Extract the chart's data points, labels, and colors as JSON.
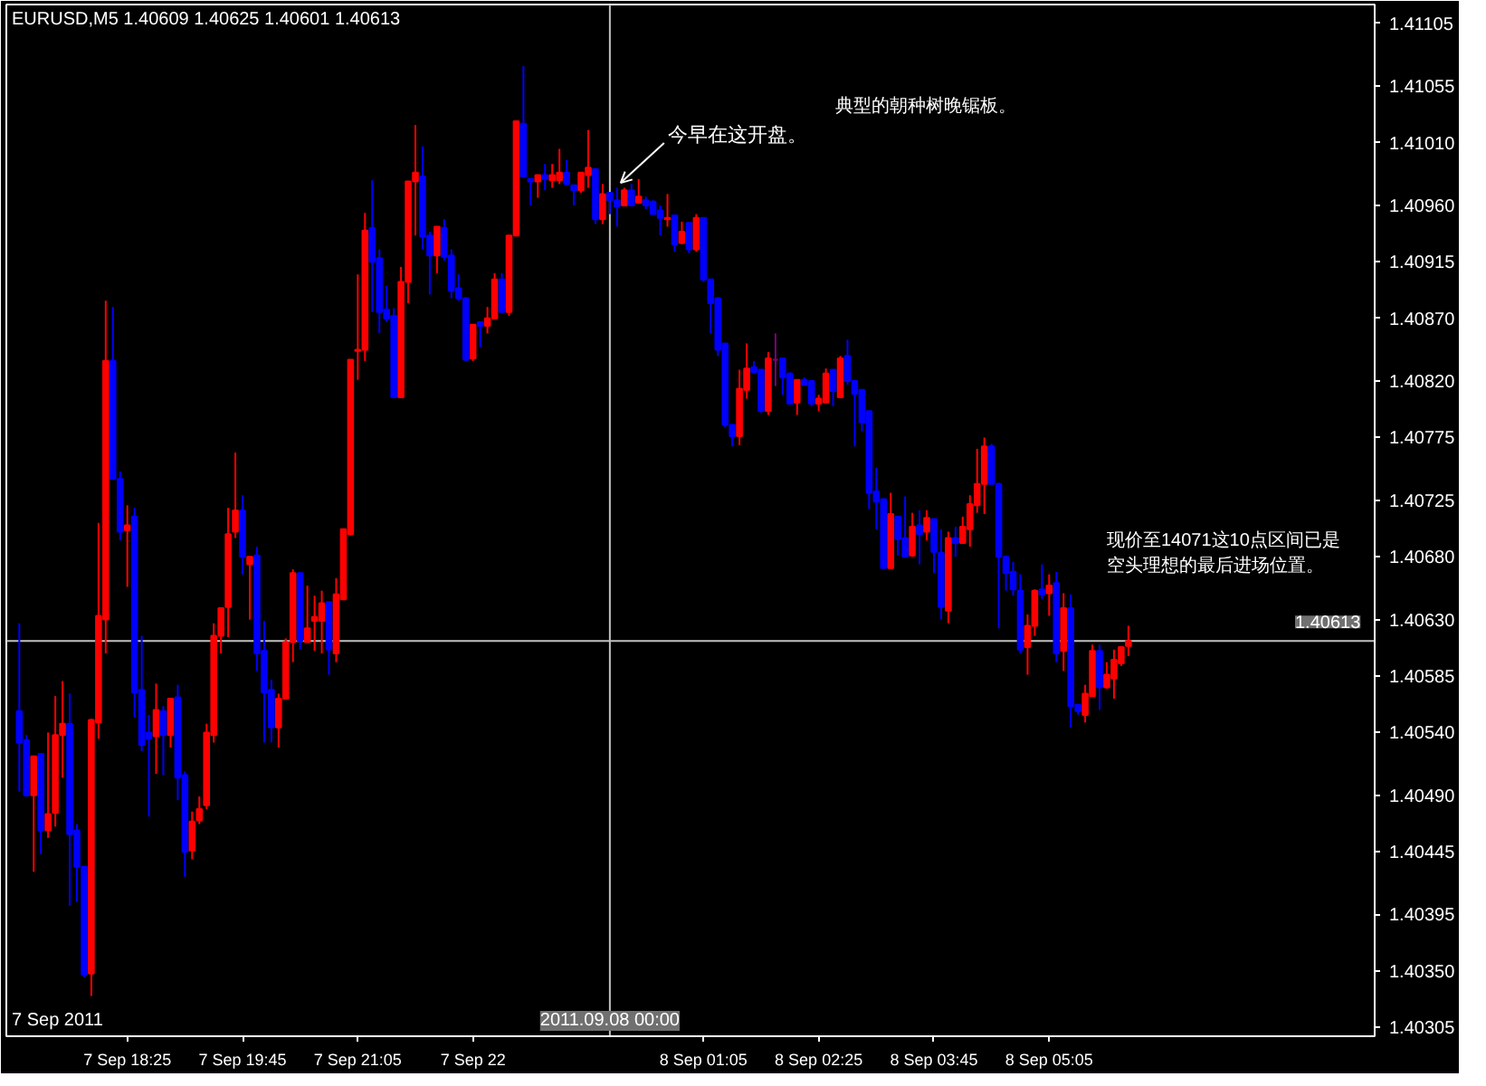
{
  "chart_data": {
    "type": "candlestick",
    "title": "EURUSD,M5  1.40609 1.40625 1.40601 1.40613",
    "x": [
      "2011-09-07T17:10",
      "2011-09-07T17:15",
      "2011-09-07T17:20",
      "2011-09-07T17:25",
      "2011-09-07T17:30",
      "2011-09-07T17:35",
      "2011-09-07T17:40",
      "2011-09-07T17:45",
      "2011-09-07T17:50",
      "2011-09-07T17:55",
      "2011-09-07T18:00",
      "2011-09-07T18:05",
      "2011-09-07T18:10",
      "2011-09-07T18:15",
      "2011-09-07T18:20",
      "2011-09-07T18:25",
      "2011-09-07T18:30",
      "2011-09-07T18:35",
      "2011-09-07T18:40",
      "2011-09-07T18:45",
      "2011-09-07T18:50",
      "2011-09-07T18:55",
      "2011-09-07T19:00",
      "2011-09-07T19:05",
      "2011-09-07T19:10",
      "2011-09-07T19:15",
      "2011-09-07T19:20",
      "2011-09-07T19:25",
      "2011-09-07T19:30",
      "2011-09-07T19:35",
      "2011-09-07T19:40",
      "2011-09-07T19:45",
      "2011-09-07T19:50",
      "2011-09-07T19:55",
      "2011-09-07T20:00",
      "2011-09-07T20:05",
      "2011-09-07T20:10",
      "2011-09-07T20:15",
      "2011-09-07T20:20",
      "2011-09-07T20:25",
      "2011-09-07T20:30",
      "2011-09-07T20:35",
      "2011-09-07T20:40",
      "2011-09-07T20:45",
      "2011-09-07T20:50",
      "2011-09-07T20:55",
      "2011-09-07T21:00",
      "2011-09-07T21:05",
      "2011-09-07T21:10",
      "2011-09-07T21:15",
      "2011-09-07T21:20",
      "2011-09-07T21:25",
      "2011-09-07T21:30",
      "2011-09-07T21:35",
      "2011-09-07T21:40",
      "2011-09-07T21:45",
      "2011-09-07T21:50",
      "2011-09-07T21:55",
      "2011-09-07T22:00",
      "2011-09-07T22:05",
      "2011-09-07T22:10",
      "2011-09-07T22:15",
      "2011-09-07T22:20",
      "2011-09-07T22:25",
      "2011-09-07T22:30",
      "2011-09-07T22:35",
      "2011-09-07T22:40",
      "2011-09-07T22:45",
      "2011-09-07T22:50",
      "2011-09-07T22:55",
      "2011-09-07T23:00",
      "2011-09-07T23:05",
      "2011-09-07T23:10",
      "2011-09-07T23:15",
      "2011-09-07T23:20",
      "2011-09-07T23:25",
      "2011-09-07T23:30",
      "2011-09-07T23:35",
      "2011-09-07T23:40",
      "2011-09-07T23:45",
      "2011-09-07T23:50",
      "2011-09-07T23:55",
      "2011-09-08T00:00",
      "2011-09-08T00:05",
      "2011-09-08T00:10",
      "2011-09-08T00:15",
      "2011-09-08T00:20",
      "2011-09-08T00:25",
      "2011-09-08T00:30",
      "2011-09-08T00:35",
      "2011-09-08T00:40",
      "2011-09-08T00:45",
      "2011-09-08T00:50",
      "2011-09-08T00:55",
      "2011-09-08T01:00",
      "2011-09-08T01:05",
      "2011-09-08T01:10",
      "2011-09-08T01:15",
      "2011-09-08T01:20",
      "2011-09-08T01:25",
      "2011-09-08T01:30",
      "2011-09-08T01:35",
      "2011-09-08T01:40",
      "2011-09-08T01:45",
      "2011-09-08T01:50",
      "2011-09-08T01:55",
      "2011-09-08T02:00",
      "2011-09-08T02:05",
      "2011-09-08T02:10",
      "2011-09-08T02:15",
      "2011-09-08T02:20",
      "2011-09-08T02:25",
      "2011-09-08T02:30",
      "2011-09-08T02:35",
      "2011-09-08T02:40",
      "2011-09-08T02:45",
      "2011-09-08T02:50",
      "2011-09-08T02:55",
      "2011-09-08T03:00",
      "2011-09-08T03:05",
      "2011-09-08T03:10",
      "2011-09-08T03:15",
      "2011-09-08T03:20",
      "2011-09-08T03:25",
      "2011-09-08T03:30",
      "2011-09-08T03:35",
      "2011-09-08T03:40",
      "2011-09-08T03:45",
      "2011-09-08T03:50",
      "2011-09-08T03:55",
      "2011-09-08T04:00",
      "2011-09-08T04:05",
      "2011-09-08T04:10",
      "2011-09-08T04:15",
      "2011-09-08T04:20",
      "2011-09-08T04:25",
      "2011-09-08T04:30",
      "2011-09-08T04:35",
      "2011-09-08T04:40",
      "2011-09-08T04:45",
      "2011-09-08T04:50",
      "2011-09-08T04:55",
      "2011-09-08T05:00",
      "2011-09-08T05:05",
      "2011-09-08T05:10",
      "2011-09-08T05:15",
      "2011-09-08T05:20",
      "2011-09-08T05:25",
      "2011-09-08T05:30",
      "2011-09-08T05:35",
      "2011-09-08T05:40",
      "2011-09-08T05:45",
      "2011-09-08T05:50",
      "2011-09-08T05:55",
      "2011-09-08T06:00"
    ],
    "ohlc": [
      [
        1.40557,
        1.40627,
        1.40493,
        1.40532
      ],
      [
        1.40534,
        1.40538,
        1.40489,
        1.4049
      ],
      [
        1.4049,
        1.40521,
        1.40429,
        1.40521
      ],
      [
        1.40523,
        1.40523,
        1.40443,
        1.40462
      ],
      [
        1.40462,
        1.4054,
        1.40456,
        1.40475
      ],
      [
        1.40476,
        1.40569,
        1.40465,
        1.40538
      ],
      [
        1.40538,
        1.40581,
        1.40504,
        1.40547
      ],
      [
        1.40547,
        1.40571,
        1.40402,
        1.40459
      ],
      [
        1.40462,
        1.40467,
        1.40405,
        1.40433
      ],
      [
        1.40433,
        1.40433,
        1.40345,
        1.40347
      ],
      [
        1.40348,
        1.40551,
        1.4033,
        1.4055
      ],
      [
        1.40548,
        1.40707,
        1.40535,
        1.40633
      ],
      [
        1.4063,
        1.40884,
        1.40603,
        1.40836
      ],
      [
        1.40836,
        1.40879,
        1.40742,
        1.40742
      ],
      [
        1.40742,
        1.40748,
        1.40693,
        1.407
      ],
      [
        1.40701,
        1.40721,
        1.40656,
        1.40705
      ],
      [
        1.40712,
        1.40719,
        1.40552,
        1.40572
      ],
      [
        1.40574,
        1.40617,
        1.40525,
        1.4053
      ],
      [
        1.4054,
        1.40554,
        1.40473,
        1.40535
      ],
      [
        1.40537,
        1.40579,
        1.40507,
        1.40558
      ],
      [
        1.40557,
        1.40561,
        1.40506,
        1.40538
      ],
      [
        1.40538,
        1.40567,
        1.40528,
        1.40567
      ],
      [
        1.40568,
        1.40578,
        1.40486,
        1.40504
      ],
      [
        1.40506,
        1.40509,
        1.40425,
        1.40445
      ],
      [
        1.40446,
        1.40477,
        1.40439,
        1.40469
      ],
      [
        1.4047,
        1.40489,
        1.40467,
        1.40479
      ],
      [
        1.40482,
        1.40547,
        1.40479,
        1.4054
      ],
      [
        1.40538,
        1.40627,
        1.40532,
        1.40617
      ],
      [
        1.40617,
        1.40639,
        1.40603,
        1.40639
      ],
      [
        1.4064,
        1.40719,
        1.40616,
        1.40698
      ],
      [
        1.407,
        1.40763,
        1.40695,
        1.40717
      ],
      [
        1.40717,
        1.40729,
        1.40666,
        1.4068
      ],
      [
        1.40674,
        1.4068,
        1.4063,
        1.4068
      ],
      [
        1.40681,
        1.40688,
        1.40589,
        1.40603
      ],
      [
        1.40605,
        1.40629,
        1.40532,
        1.40572
      ],
      [
        1.40574,
        1.40582,
        1.40532,
        1.40544
      ],
      [
        1.40544,
        1.40571,
        1.40528,
        1.40567
      ],
      [
        1.40567,
        1.40615,
        1.40567,
        1.40612
      ],
      [
        1.40612,
        1.4067,
        1.40596,
        1.40667
      ],
      [
        1.40667,
        1.40667,
        1.40606,
        1.40613
      ],
      [
        1.40612,
        1.40657,
        1.40612,
        1.40623
      ],
      [
        1.40629,
        1.40649,
        1.40605,
        1.40632
      ],
      [
        1.40629,
        1.40653,
        1.40603,
        1.40643
      ],
      [
        1.40644,
        1.40644,
        1.40586,
        1.40606
      ],
      [
        1.40603,
        1.40663,
        1.40596,
        1.4065
      ],
      [
        1.40646,
        1.40702,
        1.40646,
        1.40702
      ],
      [
        1.40698,
        1.40837,
        1.40697,
        1.40837
      ],
      [
        1.40844,
        1.40905,
        1.40821,
        1.40845
      ],
      [
        1.40845,
        1.40954,
        1.40836,
        1.4094
      ],
      [
        1.40942,
        1.4098,
        1.40875,
        1.40915
      ],
      [
        1.40918,
        1.40925,
        1.40858,
        1.40875
      ],
      [
        1.40877,
        1.40896,
        1.40867,
        1.4087
      ],
      [
        1.40872,
        1.40878,
        1.40807,
        1.40807
      ],
      [
        1.40807,
        1.40911,
        1.40807,
        1.40899
      ],
      [
        1.40899,
        1.40979,
        1.40882,
        1.40979
      ],
      [
        1.40979,
        1.41024,
        1.40936,
        1.40986
      ],
      [
        1.40983,
        1.41007,
        1.40925,
        1.40935
      ],
      [
        1.40936,
        1.40939,
        1.40889,
        1.4092
      ],
      [
        1.4092,
        1.40943,
        1.40906,
        1.40943
      ],
      [
        1.40942,
        1.40949,
        1.40916,
        1.40919
      ],
      [
        1.4092,
        1.40925,
        1.40886,
        1.40892
      ],
      [
        1.40894,
        1.40905,
        1.40884,
        1.40886
      ],
      [
        1.40886,
        1.40886,
        1.40836,
        1.40837
      ],
      [
        1.40838,
        1.40865,
        1.40836,
        1.40865
      ],
      [
        1.40867,
        1.40867,
        1.40847,
        1.40864
      ],
      [
        1.40864,
        1.40879,
        1.40858,
        1.4087
      ],
      [
        1.4087,
        1.40906,
        1.4087,
        1.40901
      ],
      [
        1.40901,
        1.40906,
        1.40875,
        1.40875
      ],
      [
        1.40875,
        1.40936,
        1.40872,
        1.40936
      ],
      [
        1.40936,
        1.41027,
        1.40936,
        1.41027
      ],
      [
        1.41025,
        1.41071,
        1.40983,
        1.40983
      ],
      [
        1.40981,
        1.40981,
        1.4096,
        1.40979
      ],
      [
        1.40979,
        1.40984,
        1.40966,
        1.40984
      ],
      [
        1.40984,
        1.40993,
        1.40972,
        1.40981
      ],
      [
        1.4098,
        1.40993,
        1.40974,
        1.40984
      ],
      [
        1.4098,
        1.41005,
        1.40977,
        1.40986
      ],
      [
        1.40986,
        1.40996,
        1.40976,
        1.40977
      ],
      [
        1.40976,
        1.40976,
        1.4096,
        1.40972
      ],
      [
        1.40972,
        1.40986,
        1.4097,
        1.40986
      ],
      [
        1.40984,
        1.4102,
        1.40974,
        1.4099
      ],
      [
        1.40989,
        1.40989,
        1.40945,
        1.40949
      ],
      [
        1.40949,
        1.40977,
        1.40945,
        1.40969
      ],
      [
        1.4097,
        1.4097,
        1.40953,
        1.40964
      ],
      [
        1.40964,
        1.40974,
        1.40943,
        1.40959
      ],
      [
        1.4096,
        1.40974,
        1.4096,
        1.40972
      ],
      [
        1.40972,
        1.40977,
        1.4096,
        1.4096
      ],
      [
        1.40962,
        1.40981,
        1.40962,
        1.40967
      ],
      [
        1.40964,
        1.40967,
        1.40957,
        1.4096
      ],
      [
        1.40963,
        1.40964,
        1.40953,
        1.40953
      ],
      [
        1.40956,
        1.4096,
        1.40936,
        1.4095
      ],
      [
        1.40949,
        1.40969,
        1.40943,
        1.4095
      ],
      [
        1.40952,
        1.40952,
        1.40923,
        1.40929
      ],
      [
        1.4093,
        1.40947,
        1.40929,
        1.40939
      ],
      [
        1.40946,
        1.40946,
        1.40922,
        1.40925
      ],
      [
        1.40925,
        1.40953,
        1.40923,
        1.4095
      ],
      [
        1.4095,
        1.4095,
        1.40899,
        1.40901
      ],
      [
        1.40901,
        1.40901,
        1.40858,
        1.40882
      ],
      [
        1.40886,
        1.40886,
        1.4084,
        1.40845
      ],
      [
        1.4085,
        1.4085,
        1.40783,
        1.40785
      ],
      [
        1.40785,
        1.40785,
        1.40768,
        1.40776
      ],
      [
        1.40776,
        1.40829,
        1.40769,
        1.40814
      ],
      [
        1.40813,
        1.4085,
        1.40806,
        1.4083
      ],
      [
        1.40831,
        1.40836,
        1.40827,
        1.40827
      ],
      [
        1.40829,
        1.40829,
        1.40795,
        1.40796
      ],
      [
        1.40796,
        1.40843,
        1.40793,
        1.40838
      ],
      [
        1.40837,
        1.40858,
        1.40816,
        1.40837
      ],
      [
        1.40838,
        1.40838,
        1.40809,
        1.40823
      ],
      [
        1.40826,
        1.40827,
        1.40802,
        1.40802
      ],
      [
        1.40803,
        1.40821,
        1.40793,
        1.40821
      ],
      [
        1.40821,
        1.40823,
        1.40817,
        1.40817
      ],
      [
        1.4082,
        1.4082,
        1.408,
        1.40802
      ],
      [
        1.40802,
        1.40809,
        1.40796,
        1.40806
      ],
      [
        1.40803,
        1.4083,
        1.40803,
        1.40826
      ],
      [
        1.40829,
        1.40829,
        1.408,
        1.40812
      ],
      [
        1.40807,
        1.4084,
        1.40807,
        1.40838
      ],
      [
        1.4084,
        1.40853,
        1.40817,
        1.4082
      ],
      [
        1.4082,
        1.4082,
        1.40768,
        1.4081
      ],
      [
        1.40813,
        1.40813,
        1.4078,
        1.40787
      ],
      [
        1.40796,
        1.40796,
        1.40718,
        1.40731
      ],
      [
        1.40732,
        1.40751,
        1.40702,
        1.40724
      ],
      [
        1.40726,
        1.40726,
        1.40671,
        1.40671
      ],
      [
        1.40671,
        1.40731,
        1.40671,
        1.40714
      ],
      [
        1.40712,
        1.40712,
        1.40681,
        1.40694
      ],
      [
        1.40695,
        1.40728,
        1.4068,
        1.4068
      ],
      [
        1.40681,
        1.40715,
        1.4068,
        1.40704
      ],
      [
        1.40705,
        1.40717,
        1.40674,
        1.40698
      ],
      [
        1.407,
        1.40717,
        1.40693,
        1.40711
      ],
      [
        1.4071,
        1.4071,
        1.40667,
        1.40684
      ],
      [
        1.40683,
        1.40702,
        1.4063,
        1.4064
      ],
      [
        1.40637,
        1.407,
        1.40627,
        1.40695
      ],
      [
        1.40695,
        1.40704,
        1.4068,
        1.40691
      ],
      [
        1.40691,
        1.40712,
        1.40691,
        1.40704
      ],
      [
        1.40702,
        1.40729,
        1.40688,
        1.40722
      ],
      [
        1.40721,
        1.40766,
        1.40715,
        1.40738
      ],
      [
        1.40738,
        1.40775,
        1.40714,
        1.40768
      ],
      [
        1.40768,
        1.4077,
        1.40738,
        1.40738
      ],
      [
        1.40738,
        1.40739,
        1.40623,
        1.4068
      ],
      [
        1.4068,
        1.40681,
        1.40653,
        1.40667
      ],
      [
        1.40668,
        1.40676,
        1.40649,
        1.40654
      ],
      [
        1.40653,
        1.40666,
        1.40603,
        1.40606
      ],
      [
        1.40608,
        1.40634,
        1.40586,
        1.40625
      ],
      [
        1.40625,
        1.40654,
        1.40617,
        1.40653
      ],
      [
        1.40654,
        1.40674,
        1.40646,
        1.4065
      ],
      [
        1.40651,
        1.40666,
        1.40633,
        1.40657
      ],
      [
        1.40659,
        1.40668,
        1.40596,
        1.40603
      ],
      [
        1.40605,
        1.40651,
        1.40589,
        1.40639
      ],
      [
        1.40639,
        1.4065,
        1.40544,
        1.40561
      ],
      [
        1.40562,
        1.40562,
        1.40554,
        1.40557
      ],
      [
        1.40554,
        1.40578,
        1.40548,
        1.40571
      ],
      [
        1.40569,
        1.4061,
        1.40569,
        1.40605
      ],
      [
        1.40605,
        1.4061,
        1.40558,
        1.40576
      ],
      [
        1.40576,
        1.40596,
        1.40575,
        1.40586
      ],
      [
        1.40583,
        1.40606,
        1.40567,
        1.40598
      ],
      [
        1.40595,
        1.40608,
        1.40593,
        1.40608
      ],
      [
        1.40609,
        1.40625,
        1.40601,
        1.40613
      ]
    ],
    "colors": [
      "#0000ff",
      "#0000ff",
      "#ff0000",
      "#0000ff",
      "#ff0000",
      "#ff0000",
      "#ff0000",
      "#0000ff",
      "#0000ff",
      "#0000ff",
      "#ff0000",
      "#ff0000",
      "#ff0000",
      "#0000ff",
      "#0000ff",
      "#ff0000",
      "#0000ff",
      "#0000ff",
      "#0000ff",
      "#ff0000",
      "#0000ff",
      "#ff0000",
      "#0000ff",
      "#0000ff",
      "#ff0000",
      "#ff0000",
      "#ff0000",
      "#ff0000",
      "#ff0000",
      "#ff0000",
      "#ff0000",
      "#0000ff",
      "#ff0000",
      "#0000ff",
      "#0000ff",
      "#0000ff",
      "#ff0000",
      "#ff0000",
      "#ff0000",
      "#0000ff",
      "#ff0000",
      "#ff0000",
      "#ff0000",
      "#0000ff",
      "#ff0000",
      "#ff0000",
      "#ff0000",
      "#ff0000",
      "#ff0000",
      "#0000ff",
      "#0000ff",
      "#0000ff",
      "#0000ff",
      "#ff0000",
      "#ff0000",
      "#ff0000",
      "#0000ff",
      "#0000ff",
      "#ff0000",
      "#0000ff",
      "#0000ff",
      "#0000ff",
      "#0000ff",
      "#ff0000",
      "#0000ff",
      "#ff0000",
      "#ff0000",
      "#0000ff",
      "#ff0000",
      "#ff0000",
      "#0000ff",
      "#0000ff",
      "#ff0000",
      "#0000ff",
      "#ff0000",
      "#ff0000",
      "#0000ff",
      "#0000ff",
      "#ff0000",
      "#ff0000",
      "#0000ff",
      "#ff0000",
      "#0000ff",
      "#0000ff",
      "#ff0000",
      "#0000ff",
      "#ff0000",
      "#0000ff",
      "#0000ff",
      "#0000ff",
      "#ff0000",
      "#0000ff",
      "#ff0000",
      "#0000ff",
      "#ff0000",
      "#0000ff",
      "#0000ff",
      "#0000ff",
      "#0000ff",
      "#0000ff",
      "#ff0000",
      "#ff0000",
      "#0000ff",
      "#0000ff",
      "#ff0000",
      "#800080",
      "#0000ff",
      "#0000ff",
      "#ff0000",
      "#0000ff",
      "#0000ff",
      "#ff0000",
      "#ff0000",
      "#0000ff",
      "#ff0000",
      "#0000ff",
      "#0000ff",
      "#0000ff",
      "#0000ff",
      "#0000ff",
      "#0000ff",
      "#ff0000",
      "#0000ff",
      "#0000ff",
      "#ff0000",
      "#0000ff",
      "#ff0000",
      "#0000ff",
      "#0000ff",
      "#ff0000",
      "#0000ff",
      "#ff0000",
      "#ff0000",
      "#ff0000",
      "#ff0000",
      "#0000ff",
      "#0000ff",
      "#0000ff",
      "#0000ff",
      "#0000ff",
      "#ff0000",
      "#ff0000",
      "#0000ff",
      "#ff0000",
      "#0000ff",
      "#ff0000",
      "#0000ff",
      "#0000ff",
      "#ff0000",
      "#ff0000",
      "#0000ff",
      "#ff0000",
      "#ff0000",
      "#ff0000",
      "#ff0000"
    ],
    "xlim": [
      "2011-09-07T17:01",
      "2011-09-08T08:51"
    ],
    "xticks": [
      {
        "value": "2011-09-07T18:25",
        "label": "7 Sep 18:25"
      },
      {
        "value": "2011-09-07T19:45",
        "label": "7 Sep 19:45"
      },
      {
        "value": "2011-09-07T21:05",
        "label": "7 Sep 21:05"
      },
      {
        "value": "2011-09-07T22:25",
        "label": "7 Sep 22"
      },
      {
        "value": "2011-09-08T01:05",
        "label": "8 Sep 01:05"
      },
      {
        "value": "2011-09-08T02:25",
        "label": "8 Sep 02:25"
      },
      {
        "value": "2011-09-08T03:45",
        "label": "8 Sep 03:45"
      },
      {
        "value": "2011-09-08T05:05",
        "label": "8 Sep 05:05"
      }
    ],
    "ylim": [
      1.40298,
      1.4112
    ],
    "yticks": [
      1.41105,
      1.41055,
      {
        "value": 1.4101,
        "label": "1.41010"
      },
      {
        "value": 1.4096,
        "label": "1.40960"
      },
      1.40915,
      {
        "value": 1.4087,
        "label": "1.40870"
      },
      {
        "value": 1.4082,
        "label": "1.40820"
      },
      1.40775,
      1.40725,
      {
        "value": 1.4068,
        "label": "1.40680"
      },
      {
        "value": 1.4063,
        "label": "1.40630"
      },
      1.40585,
      {
        "value": 1.4054,
        "label": "1.40540"
      },
      {
        "value": 1.4049,
        "label": "1.40490"
      },
      1.40445,
      1.40395,
      {
        "value": 1.4035,
        "label": "1.40350"
      },
      1.40305
    ],
    "ref_lines": [
      {
        "axis": "x",
        "value": "2011-09-08T00:00",
        "label": "2011.09.08 00:00",
        "color": "#c0c0c0"
      },
      {
        "axis": "y",
        "value": 1.40613,
        "label": "1.40613",
        "color": "#c0c0c0"
      }
    ],
    "annotations": [
      {
        "text": "今早在这开盘。",
        "x": "2011-09-08T00:05",
        "y": 1.40975
      },
      "典型的朝种树晚锯板。",
      "现价至14071这10点区间已是",
      "空头理想的最后进场位置。",
      "7 Sep 2011"
    ],
    "grid": false
  }
}
